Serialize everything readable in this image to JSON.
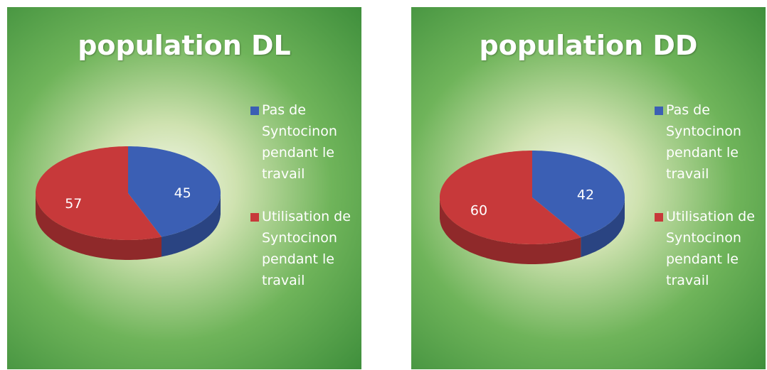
{
  "chart_data": [
    {
      "type": "pie",
      "title": "population DL",
      "categories": [
        "Pas de Syntocinon pendant le travail",
        "Utilisation de Syntocinon pendant le travail"
      ],
      "values": [
        45,
        57
      ],
      "colors": [
        "#3b5fb4",
        "#c7393a"
      ]
    },
    {
      "type": "pie",
      "title": "population DD",
      "categories": [
        "Pas de Syntocinon pendant le travail",
        "Utilisation de Syntocinon pendant le travail"
      ],
      "values": [
        42,
        60
      ],
      "colors": [
        "#3b5fb4",
        "#c7393a"
      ]
    }
  ]
}
